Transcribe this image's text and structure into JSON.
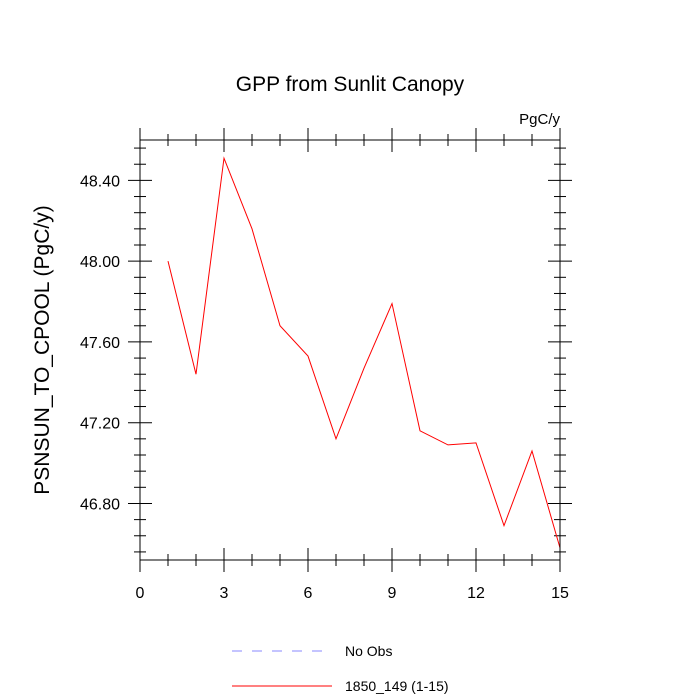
{
  "chart_data": {
    "type": "line",
    "title": "GPP from Sunlit Canopy",
    "units_label": "PgC/y",
    "xlabel": "",
    "ylabel": "PSNSUN_TO_CPOOL  (PgC/y)",
    "xlim": [
      0,
      15
    ],
    "ylim": [
      46.52,
      48.6
    ],
    "x_ticks": [
      0,
      3,
      6,
      9,
      12,
      15
    ],
    "x_tick_labels": [
      "0",
      "3",
      "6",
      "9",
      "12",
      "15"
    ],
    "y_ticks": [
      46.8,
      47.2,
      47.6,
      48.0,
      48.4
    ],
    "y_tick_labels": [
      "46.80",
      "47.20",
      "47.60",
      "48.00",
      "48.40"
    ],
    "grid": false,
    "legend_position": "bottom",
    "series": [
      {
        "name": "No Obs",
        "color": "#8888ff",
        "dash": "dashed",
        "x": [],
        "values": []
      },
      {
        "name": "1850_149 (1-15)",
        "color": "#ff0000",
        "dash": "solid",
        "x": [
          1,
          2,
          3,
          4,
          5,
          6,
          7,
          8,
          9,
          10,
          11,
          12,
          13,
          14,
          15
        ],
        "values": [
          48.0,
          47.44,
          48.51,
          48.16,
          47.68,
          47.53,
          47.12,
          47.47,
          47.79,
          47.16,
          47.09,
          47.1,
          46.69,
          47.06,
          46.58
        ]
      }
    ]
  }
}
